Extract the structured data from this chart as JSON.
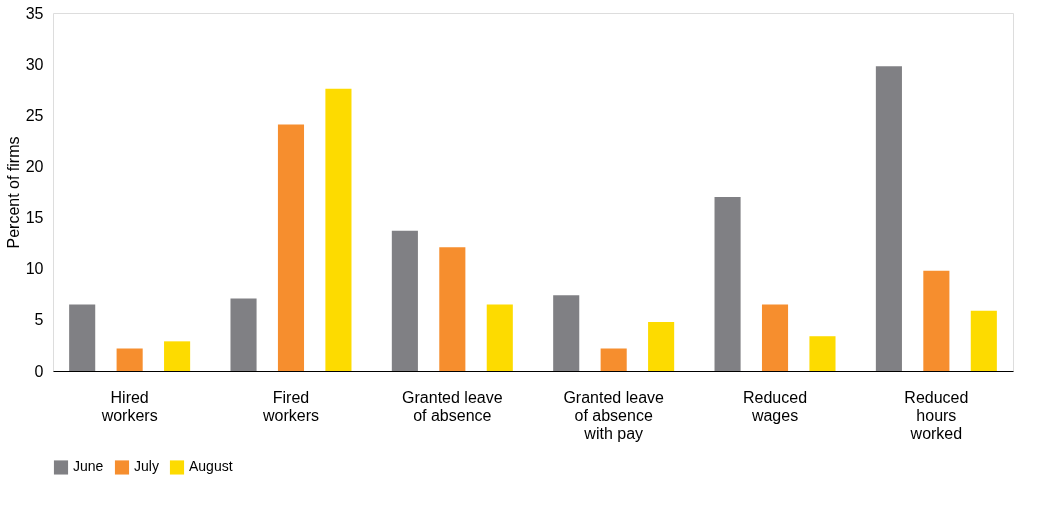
{
  "chart_data": {
    "type": "bar",
    "ylabel": "Percent of firms",
    "categories": [
      "Hired\nworkers",
      "Fired\nworkers",
      "Granted leave\nof absence",
      "Granted leave\nof absence\nwith pay",
      "Reduced\nwages",
      "Reduced\nhours\nworked"
    ],
    "series": [
      {
        "name": "June",
        "color": "#808084",
        "values": [
          6.5,
          7.1,
          13.7,
          7.4,
          17.0,
          29.8
        ]
      },
      {
        "name": "July",
        "color": "#f68e2e",
        "values": [
          2.2,
          24.1,
          12.1,
          2.2,
          6.5,
          9.8
        ]
      },
      {
        "name": "August",
        "color": "#fddb00",
        "values": [
          2.9,
          27.6,
          6.5,
          4.8,
          3.4,
          5.9
        ]
      }
    ],
    "ylim": [
      0,
      35
    ],
    "yticks": [
      0,
      5,
      10,
      15,
      20,
      25,
      30,
      35
    ],
    "grid": false,
    "legend": "bottom"
  }
}
